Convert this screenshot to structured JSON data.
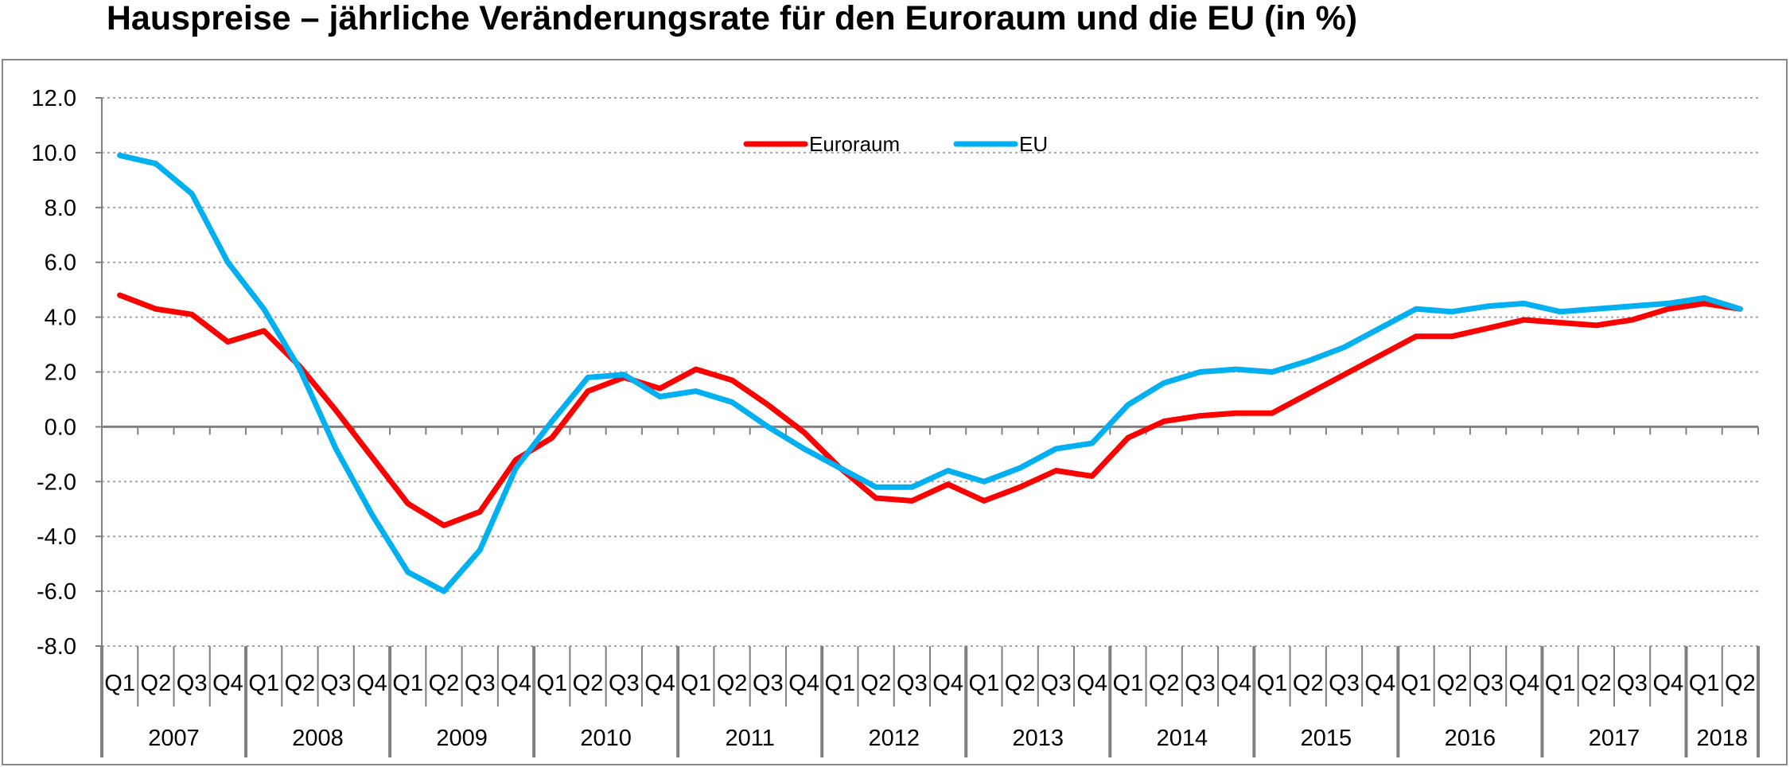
{
  "chart_data": {
    "type": "line",
    "title": "Hauspreise – jährliche Veränderungsrate für den Euroraum und die EU (in %)",
    "xlabel": "",
    "ylabel": "",
    "ylim": [
      -8,
      12
    ],
    "yticks": [
      "12.0",
      "10.0",
      "8.0",
      "6.0",
      "4.0",
      "2.0",
      "0.0",
      "-2.0",
      "-4.0",
      "-6.0",
      "-8.0"
    ],
    "grid": true,
    "legend_position": "top-center",
    "quarters": [
      "Q1",
      "Q2",
      "Q3",
      "Q4",
      "Q1",
      "Q2",
      "Q3",
      "Q4",
      "Q1",
      "Q2",
      "Q3",
      "Q4",
      "Q1",
      "Q2",
      "Q3",
      "Q4",
      "Q1",
      "Q2",
      "Q3",
      "Q4",
      "Q1",
      "Q2",
      "Q3",
      "Q4",
      "Q1",
      "Q2",
      "Q3",
      "Q4",
      "Q1",
      "Q2",
      "Q3",
      "Q4",
      "Q1",
      "Q2",
      "Q3",
      "Q4",
      "Q1",
      "Q2",
      "Q3",
      "Q4",
      "Q1",
      "Q2",
      "Q3",
      "Q4",
      "Q1",
      "Q2"
    ],
    "years": [
      "2007",
      "2008",
      "2009",
      "2010",
      "2011",
      "2012",
      "2013",
      "2014",
      "2015",
      "2016",
      "2017",
      "2018"
    ],
    "series": [
      {
        "name": "Euroraum",
        "color": "#ff0000",
        "values": [
          4.8,
          4.3,
          4.1,
          3.1,
          3.5,
          2.2,
          0.6,
          -1.1,
          -2.8,
          -3.6,
          -3.1,
          -1.2,
          -0.4,
          1.3,
          1.8,
          1.4,
          2.1,
          1.7,
          0.8,
          -0.2,
          -1.5,
          -2.6,
          -2.7,
          -2.1,
          -2.7,
          -2.2,
          -1.6,
          -1.8,
          -0.4,
          0.2,
          0.4,
          0.5,
          0.5,
          1.2,
          1.9,
          2.6,
          3.3,
          3.3,
          3.6,
          3.9,
          3.8,
          3.7,
          3.9,
          4.3,
          4.5,
          4.3
        ]
      },
      {
        "name": "EU",
        "color": "#00b0f0",
        "values": [
          9.9,
          9.6,
          8.5,
          6.0,
          4.3,
          2.1,
          -0.8,
          -3.2,
          -5.3,
          -6.0,
          -4.5,
          -1.5,
          0.2,
          1.8,
          1.9,
          1.1,
          1.3,
          0.9,
          0.0,
          -0.8,
          -1.5,
          -2.2,
          -2.2,
          -1.6,
          -2.0,
          -1.5,
          -0.8,
          -0.6,
          0.8,
          1.6,
          2.0,
          2.1,
          2.0,
          2.4,
          2.9,
          3.6,
          4.3,
          4.2,
          4.4,
          4.5,
          4.2,
          4.3,
          4.4,
          4.5,
          4.7,
          4.3
        ]
      }
    ]
  }
}
